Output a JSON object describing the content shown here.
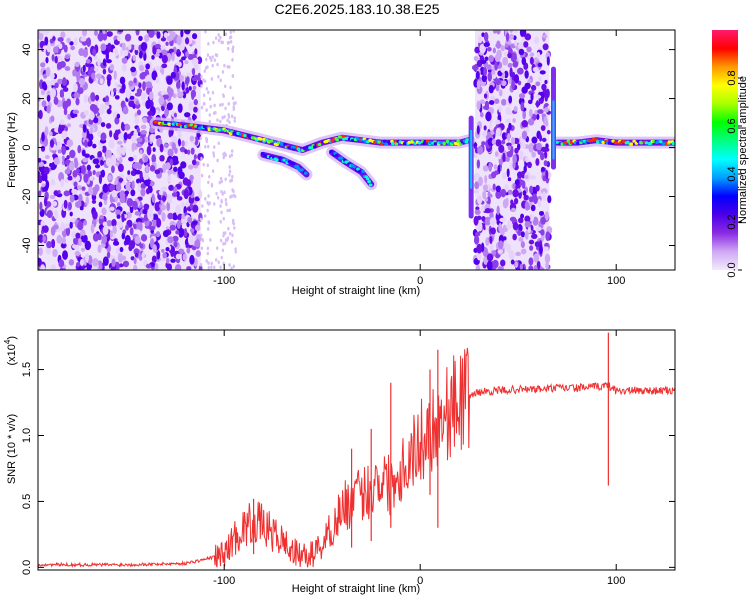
{
  "figure": {
    "title": "C2E6.2025.183.10.38.E25"
  },
  "chart_data": [
    {
      "type": "heatmap",
      "xlabel": "Height of straight line (km)",
      "ylabel": "Frequency (Hz)",
      "xlim": [
        -195,
        130
      ],
      "ylim": [
        -50,
        48
      ],
      "xticks": [
        -100,
        0,
        100
      ],
      "xtick_labels": [
        "-100",
        "0",
        "100"
      ],
      "yticks": [
        -40,
        -20,
        0,
        20,
        40
      ],
      "ytick_labels": [
        "-40",
        "-20",
        "0",
        "20",
        "40"
      ],
      "colorbar": {
        "label": "Normalized spectral amplitude",
        "range": [
          0,
          1
        ],
        "ticks": [
          0.0,
          0.2,
          0.4,
          0.6,
          0.8
        ],
        "tick_labels": [
          "0.0",
          "0.2",
          "0.4",
          "0.6",
          "0.8"
        ],
        "colormap": [
          "#f2eafc",
          "#cfa8f5",
          "#8a2be2",
          "#4b00e8",
          "#0000ff",
          "#00a0ff",
          "#00ffff",
          "#00ff80",
          "#00ff00",
          "#aaff00",
          "#ffff00",
          "#ff9900",
          "#ff0000",
          "#ff1a6e"
        ]
      },
      "noise_regions": [
        {
          "x": [
            -195,
            -112
          ],
          "y": [
            -50,
            48
          ]
        },
        {
          "x": [
            28,
            66
          ],
          "y": [
            -50,
            48
          ]
        }
      ],
      "ridges": [
        {
          "x": [
            -135,
            -120,
            -100,
            -85,
            -70,
            -60,
            -50,
            -40,
            -30,
            -20,
            -10,
            0,
            10,
            20,
            25
          ],
          "y": [
            10,
            9,
            7,
            4,
            1,
            -1,
            2,
            4,
            3,
            2,
            2,
            2,
            2,
            2,
            3
          ]
        },
        {
          "x": [
            -80,
            -70,
            -62,
            -58
          ],
          "y": [
            -3,
            -5,
            -8,
            -11
          ]
        },
        {
          "x": [
            -45,
            -38,
            -30,
            -25
          ],
          "y": [
            -2,
            -6,
            -10,
            -15
          ]
        },
        {
          "x": [
            70,
            80,
            90,
            100,
            110,
            120,
            130
          ],
          "y": [
            2,
            2,
            3,
            2,
            2,
            2,
            2
          ]
        }
      ],
      "spikes": [
        {
          "x": 26,
          "y": [
            -28,
            12
          ]
        },
        {
          "x": 68,
          "y": [
            -8,
            32
          ]
        }
      ]
    },
    {
      "type": "line",
      "xlabel": "Height of straight line (km)",
      "ylabel": "SNR (10 * v/v)",
      "y_multiplier": "(x10",
      "y_multiplier_exponent": "4",
      "y_multiplier_close": ")",
      "xlim": [
        -195,
        130
      ],
      "ylim": [
        -0.02,
        1.8
      ],
      "xticks": [
        -100,
        0,
        100
      ],
      "xtick_labels": [
        "-100",
        "0",
        "100"
      ],
      "yticks": [
        0.0,
        0.5,
        1.0,
        1.5
      ],
      "ytick_labels": [
        "0.0",
        "0.5",
        "1.0",
        "1.5"
      ],
      "color": "#ee3030",
      "series": [
        {
          "x": [
            -195,
            -150,
            -120,
            -110,
            -100,
            -95,
            -90,
            -85,
            -80,
            -75,
            -70,
            -65,
            -60,
            -55,
            -50,
            -45,
            -40,
            -35,
            -30,
            -25,
            -20,
            -15,
            -10,
            -5,
            0,
            5,
            10,
            15,
            20,
            25,
            30,
            40,
            50,
            60,
            70,
            80,
            90,
            96,
            100,
            110,
            120,
            130
          ],
          "y": [
            0.02,
            0.02,
            0.03,
            0.06,
            0.1,
            0.22,
            0.3,
            0.35,
            0.32,
            0.25,
            0.2,
            0.12,
            0.08,
            0.1,
            0.18,
            0.3,
            0.45,
            0.5,
            0.55,
            0.6,
            0.7,
            0.62,
            0.75,
            0.85,
            0.95,
            1.05,
            1.12,
            1.2,
            1.27,
            1.3,
            1.33,
            1.34,
            1.35,
            1.35,
            1.36,
            1.36,
            1.37,
            1.38,
            1.34,
            1.34,
            1.34,
            1.34
          ]
        }
      ],
      "spikes": [
        {
          "x": -85,
          "y": [
            0.1,
            0.52
          ]
        },
        {
          "x": -35,
          "y": [
            0.15,
            0.9
          ]
        },
        {
          "x": -25,
          "y": [
            0.2,
            1.05
          ]
        },
        {
          "x": -15,
          "y": [
            0.3,
            1.4
          ]
        },
        {
          "x": 5,
          "y": [
            0.55,
            1.5
          ]
        },
        {
          "x": 9,
          "y": [
            0.3,
            1.65
          ]
        },
        {
          "x": 96,
          "y": [
            0.62,
            1.78
          ]
        }
      ]
    }
  ]
}
